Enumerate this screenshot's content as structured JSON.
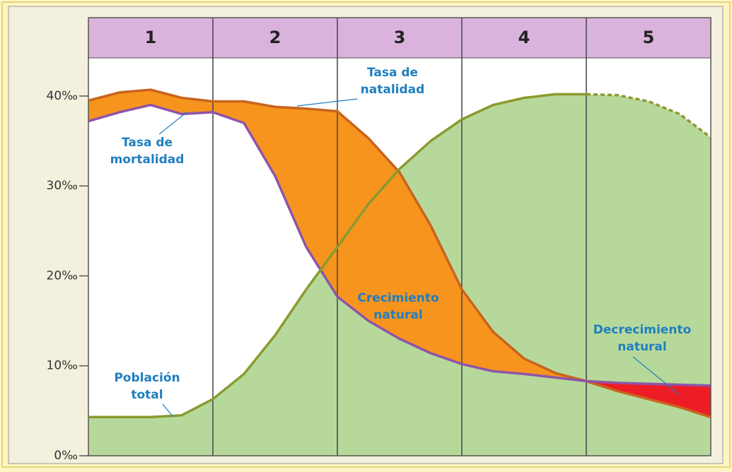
{
  "chart_data": {
    "type": "line",
    "stages": [
      "1",
      "2",
      "3",
      "4",
      "5"
    ],
    "x": [
      0,
      0.25,
      0.5,
      0.75,
      1,
      1.25,
      1.5,
      1.75,
      2,
      2.25,
      2.5,
      2.75,
      3,
      3.25,
      3.5,
      3.75,
      4,
      4.25,
      4.5,
      4.75,
      5
    ],
    "xlim": [
      0,
      5
    ],
    "ylim": [
      0,
      44
    ],
    "yticks": [
      {
        "value": 0,
        "label": "0‰"
      },
      {
        "value": 10,
        "label": "10‰"
      },
      {
        "value": 20,
        "label": "20‰"
      },
      {
        "value": 30,
        "label": "30‰"
      },
      {
        "value": 40,
        "label": "40‰"
      }
    ],
    "series": [
      {
        "color": "#c8641e",
        "values": [
          39.5,
          40.4,
          40.7,
          39.8,
          39.4,
          39.4,
          38.8,
          38.6,
          38.3,
          35.3,
          31.5,
          25.6,
          18.5,
          13.8,
          10.8,
          9.2,
          8.3,
          7.2,
          6.3,
          5.4,
          4.3
        ]
      },
      {
        "color": "#8e54a8",
        "values": [
          37.2,
          38.2,
          39.0,
          38.0,
          38.2,
          37.0,
          31.1,
          23.2,
          17.7,
          15.0,
          13.0,
          11.4,
          10.2,
          9.4,
          9.1,
          8.7,
          8.3,
          8.1,
          8.0,
          7.9,
          7.8
        ]
      },
      {
        "color": "#8a9a2e",
        "fill": "#b6d99b",
        "values": [
          4.3,
          4.3,
          4.3,
          4.5,
          6.3,
          9.1,
          13.4,
          18.5,
          23.2,
          28.0,
          31.9,
          35.0,
          37.4,
          39.0,
          39.8,
          40.2,
          40.2,
          null,
          null,
          null,
          null
        ]
      },
      {
        "color": "#8a9a2e",
        "fill": "#b6d99b",
        "line_style": "dashed",
        "values": [
          null,
          null,
          null,
          null,
          null,
          null,
          null,
          null,
          null,
          null,
          null,
          null,
          null,
          null,
          null,
          null,
          40.2,
          40.1,
          39.4,
          38.0,
          35.4
        ]
      }
    ],
    "growth_color": "#f7941d",
    "decrease_color": "#ee1c25",
    "annotations": [
      {
        "lines": [
          "Tasa de",
          "natalidad"
        ]
      },
      {
        "lines": [
          "Tasa de",
          "mortalidad"
        ]
      },
      {
        "lines": [
          "Población",
          "total"
        ]
      },
      {
        "lines": [
          "Crecimiento",
          "natural"
        ]
      },
      {
        "lines": [
          "Decrecimiento",
          "natural"
        ]
      }
    ]
  }
}
